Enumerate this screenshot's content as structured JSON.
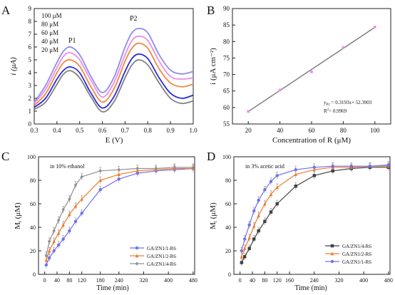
{
  "chart_data": [
    {
      "panel": "A",
      "type": "line",
      "xlabel": "E (V)",
      "ylabel": "i (μA)",
      "xlim": [
        0.3,
        1.0
      ],
      "ylim": [
        0,
        9
      ],
      "xticks": [
        "0.3",
        "0.4",
        "0.5",
        "0.6",
        "0.7",
        "0.8",
        "0.9",
        "1.0"
      ],
      "yticks": [
        "0",
        "1",
        "2",
        "3",
        "4",
        "5",
        "6",
        "7",
        "8",
        "9"
      ],
      "annotations": [
        "P1",
        "P2"
      ],
      "legend_position": "top-left",
      "x": [
        0.3,
        0.35,
        0.4,
        0.43,
        0.46,
        0.5,
        0.55,
        0.6,
        0.65,
        0.7,
        0.73,
        0.76,
        0.8,
        0.85,
        0.9,
        0.95,
        1.0
      ],
      "series": [
        {
          "name": "100 μM",
          "color": "#8c8cf0",
          "values": [
            1.7,
            3.0,
            4.8,
            5.7,
            6.0,
            5.4,
            3.7,
            2.45,
            3.6,
            6.0,
            7.1,
            7.45,
            7.1,
            5.4,
            4.2,
            3.9,
            4.1
          ]
        },
        {
          "name": "80 μM",
          "color": "#f08ce6",
          "values": [
            1.6,
            2.7,
            4.4,
            5.3,
            5.55,
            5.0,
            3.4,
            2.1,
            3.2,
            5.4,
            6.5,
            6.85,
            6.5,
            4.9,
            3.7,
            3.5,
            3.6
          ]
        },
        {
          "name": "60 μM",
          "color": "#f08a3c",
          "values": [
            1.45,
            2.35,
            4.0,
            4.8,
            5.0,
            4.5,
            2.9,
            1.7,
            2.7,
            4.9,
            5.9,
            6.3,
            5.9,
            4.3,
            3.2,
            2.9,
            3.1
          ]
        },
        {
          "name": "40 μM",
          "color": "#2a2ad8",
          "values": [
            1.3,
            2.0,
            3.5,
            4.2,
            4.45,
            4.0,
            2.4,
            1.25,
            2.1,
            4.1,
            5.1,
            5.45,
            5.1,
            3.6,
            2.4,
            2.0,
            2.25
          ]
        },
        {
          "name": "20 μM",
          "color": "#808080",
          "values": [
            1.15,
            1.7,
            3.1,
            3.9,
            4.15,
            3.6,
            2.1,
            0.95,
            1.7,
            3.6,
            4.6,
            5.0,
            4.6,
            3.2,
            2.0,
            1.6,
            1.8
          ]
        }
      ]
    },
    {
      "panel": "B",
      "type": "scatter",
      "xlabel": "Concentration of R (μM)",
      "ylabel": "i (μA cm⁻²)",
      "xlim": [
        10,
        110
      ],
      "ylim": [
        55,
        90
      ],
      "xticks": [
        "20",
        "40",
        "60",
        "80",
        "100"
      ],
      "yticks": [
        "55",
        "60",
        "65",
        "70",
        "75",
        "80",
        "85",
        "90"
      ],
      "fit_line": {
        "slope": 0.3193,
        "intercept": 52.3903,
        "color": "#7a7a7a"
      },
      "equation": "y",
      "equation_sub": "P1",
      "equation_rest": " = 0.3193x+ 52.3903",
      "r2": "R",
      "r2_sup": "2",
      "r2_rest": "= 0.9969",
      "points": {
        "color": "#f08ce6",
        "x": [
          20,
          40,
          60,
          80,
          100
        ],
        "y": [
          58.8,
          65.3,
          70.8,
          78.2,
          84.4
        ]
      }
    },
    {
      "panel": "C",
      "type": "line",
      "annotation": "in 10% ethanol",
      "xlabel": "Time (min)",
      "ylabel": "M",
      "ylabel_sub": "t",
      "ylabel_rest": " (μM)",
      "xlim": [
        -20,
        485
      ],
      "ylim": [
        0,
        100
      ],
      "xticks": [
        0,
        40,
        80,
        120,
        180,
        240,
        320,
        400,
        480
      ],
      "yticks": [
        0,
        20,
        40,
        60,
        80,
        100
      ],
      "legend_position": "bottom-right",
      "x": [
        5,
        15,
        30,
        45,
        60,
        80,
        100,
        120,
        180,
        240,
        300,
        360,
        420,
        480
      ],
      "series": [
        {
          "name": "GA/ZN1/1-R6",
          "color": "#7070f0",
          "marker": "circle",
          "values": [
            8,
            14,
            20,
            25,
            30,
            37,
            45,
            52,
            72,
            81,
            86,
            88,
            89,
            90
          ]
        },
        {
          "name": "GA/ZN1/2-R6",
          "color": "#f07a2a",
          "marker": "triangle",
          "values": [
            12,
            20,
            28,
            35,
            42,
            51,
            58,
            64,
            80,
            85,
            88,
            89,
            90,
            90
          ]
        },
        {
          "name": "GA/ZN1/4-R6",
          "color": "#909090",
          "marker": "diamond",
          "values": [
            16,
            28,
            37,
            46,
            55,
            64,
            76,
            83,
            88,
            89,
            90,
            90,
            91,
            91
          ]
        }
      ],
      "error": 3
    },
    {
      "panel": "D",
      "type": "line",
      "annotation": "in 3% acetic acid",
      "xlabel": "Time (min)",
      "ylabel": "M",
      "ylabel_sub": "t",
      "ylabel_rest": " (μM)",
      "xlim": [
        -20,
        485
      ],
      "ylim": [
        0,
        100
      ],
      "xticks": [
        0,
        40,
        80,
        120,
        160,
        240,
        320,
        400,
        480
      ],
      "yticks": [
        0,
        20,
        40,
        60,
        80,
        100
      ],
      "legend_position": "bottom-right",
      "x": [
        5,
        15,
        30,
        45,
        60,
        80,
        100,
        120,
        180,
        240,
        300,
        360,
        420,
        480
      ],
      "series": [
        {
          "name": "GA/ZN1/4-R6",
          "color": "#404040",
          "marker": "square",
          "values": [
            10,
            15,
            22,
            30,
            37,
            45,
            53,
            60,
            75,
            84,
            88,
            90,
            91,
            91
          ]
        },
        {
          "name": "GA/ZN1/2-R6",
          "color": "#f07a2a",
          "marker": "triangle",
          "values": [
            15,
            22,
            31,
            41,
            50,
            60,
            68,
            74,
            85,
            89,
            91,
            91,
            92,
            92
          ]
        },
        {
          "name": "GA/ZN1/1-R6",
          "color": "#7070f0",
          "marker": "circle",
          "values": [
            20,
            30,
            42,
            54,
            63,
            72,
            79,
            84,
            89,
            91,
            92,
            92,
            92,
            93
          ]
        }
      ],
      "error": 3
    }
  ],
  "panels": {
    "a": {
      "letter": "A"
    },
    "b": {
      "letter": "B"
    },
    "c": {
      "letter": "C"
    },
    "d": {
      "letter": "D"
    }
  }
}
